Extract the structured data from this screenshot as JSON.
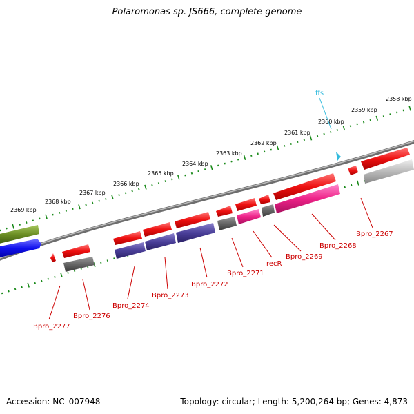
{
  "title": "Polaromonas sp. JS666, complete genome",
  "footer": {
    "accession": "Accession: NC_007948",
    "summary": "Topology: circular; Length: 5,200,264 bp; Genes: 4,873"
  },
  "colors": {
    "backbone": "#8a8a8a",
    "ticks": "#1a8a1a",
    "label": "#cc0000",
    "rna_label": "#33bbdd",
    "cds": "#ee1111",
    "pseudo": "#666666",
    "purple": "#4a3f99",
    "magenta": "#ee2288",
    "olive": "#6b8e23",
    "blue": "#1010ee",
    "grey": "#b8b8b8"
  },
  "kbp_labels": [
    "2358 kbp",
    "2359 kbp",
    "2360 kbp",
    "2361 kbp",
    "2362 kbp",
    "2363 kbp",
    "2364 kbp",
    "2365 kbp",
    "2366 kbp",
    "2367 kbp",
    "2368 kbp",
    "2369 kbp"
  ],
  "gene_labels": [
    "ffs",
    "Bpro_2267",
    "Bpro_2268",
    "Bpro_2269",
    "recR",
    "Bpro_2271",
    "Bpro_2272",
    "Bpro_2273",
    "Bpro_2274",
    "Bpro_2276",
    "Bpro_2277"
  ]
}
